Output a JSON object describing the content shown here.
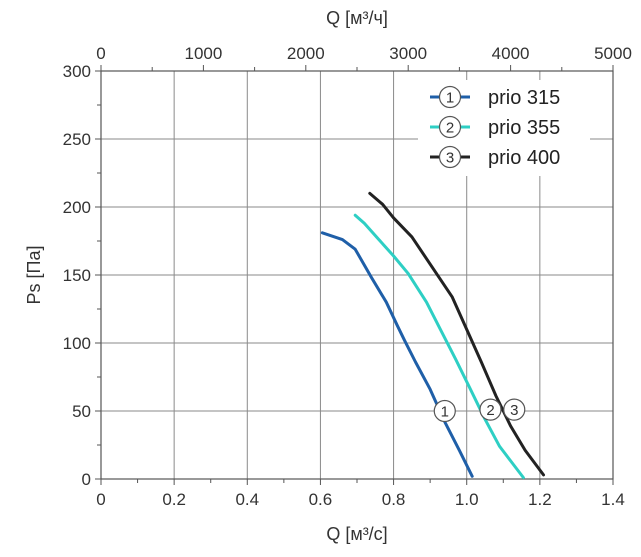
{
  "chart_data": {
    "type": "line",
    "x_bottom": {
      "label": "Q [м³/с]",
      "range": [
        0,
        1.4
      ],
      "ticks": [
        0,
        0.2,
        0.4,
        0.6,
        0.8,
        1.0,
        1.2,
        1.4
      ],
      "tick_labels": [
        "0",
        "0.2",
        "0.4",
        "0.6",
        "0.8",
        "1.0",
        "1.2",
        "1.4"
      ]
    },
    "x_top": {
      "label": "Q [м³/ч]",
      "range": [
        0,
        5000
      ],
      "ticks": [
        0,
        1000,
        2000,
        3000,
        4000,
        5000
      ],
      "tick_labels": [
        "0",
        "1000",
        "2000",
        "3000",
        "4000",
        "5000"
      ]
    },
    "y": {
      "label": "Ps [Па]",
      "range": [
        0,
        300
      ],
      "ticks": [
        0,
        50,
        100,
        150,
        200,
        250,
        300
      ],
      "tick_labels": [
        "0",
        "50",
        "100",
        "150",
        "200",
        "250",
        "300"
      ]
    },
    "grid": true,
    "legend_position": "top-right",
    "series": [
      {
        "name": "prio 315",
        "marker": "1",
        "color": "#1f5fa8",
        "points": [
          [
            0.605,
            181
          ],
          [
            0.66,
            176
          ],
          [
            0.695,
            169
          ],
          [
            0.74,
            148
          ],
          [
            0.78,
            130
          ],
          [
            0.81,
            113
          ],
          [
            0.83,
            102
          ],
          [
            0.86,
            86
          ],
          [
            0.9,
            66
          ],
          [
            0.94,
            42
          ],
          [
            0.98,
            21
          ],
          [
            1.015,
            2
          ]
        ]
      },
      {
        "name": "prio 355",
        "marker": "2",
        "color": "#2ecfc4",
        "points": [
          [
            0.695,
            194
          ],
          [
            0.72,
            188
          ],
          [
            0.76,
            176
          ],
          [
            0.8,
            164
          ],
          [
            0.84,
            151
          ],
          [
            0.89,
            130
          ],
          [
            0.93,
            109
          ],
          [
            0.97,
            88
          ],
          [
            1.01,
            66
          ],
          [
            1.05,
            44
          ],
          [
            1.09,
            24
          ],
          [
            1.155,
            1
          ]
        ]
      },
      {
        "name": "prio 400",
        "marker": "3",
        "color": "#222222",
        "points": [
          [
            0.735,
            210
          ],
          [
            0.77,
            202
          ],
          [
            0.8,
            192
          ],
          [
            0.85,
            178
          ],
          [
            0.9,
            158
          ],
          [
            0.96,
            134
          ],
          [
            1.0,
            110
          ],
          [
            1.04,
            86
          ],
          [
            1.08,
            61
          ],
          [
            1.12,
            39
          ],
          [
            1.16,
            21
          ],
          [
            1.21,
            3
          ]
        ]
      }
    ],
    "curve_markers": [
      {
        "label": "1",
        "x": 0.94,
        "y": 50
      },
      {
        "label": "2",
        "x": 1.065,
        "y": 51
      },
      {
        "label": "3",
        "x": 1.13,
        "y": 51
      }
    ]
  }
}
